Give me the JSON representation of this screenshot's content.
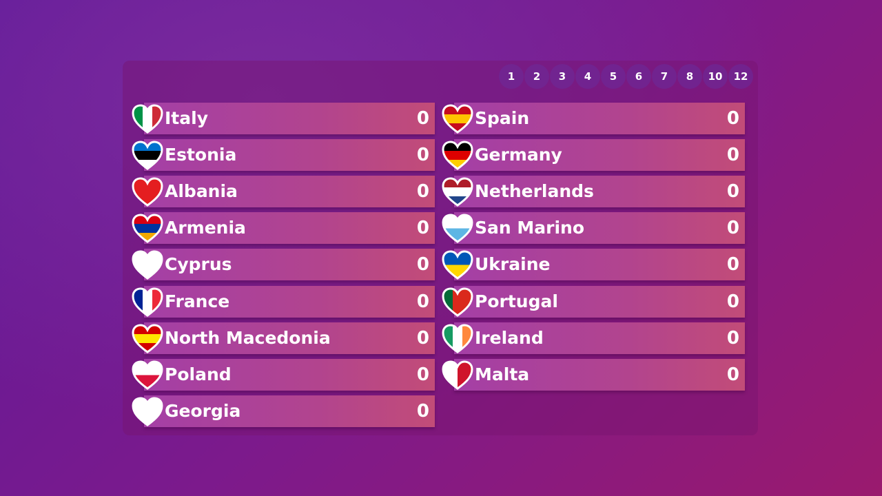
{
  "points": [
    1,
    2,
    3,
    4,
    5,
    6,
    7,
    8,
    10,
    12
  ],
  "columns": [
    [
      {
        "country": "Italy",
        "score": 0
      },
      {
        "country": "Estonia",
        "score": 0
      },
      {
        "country": "Albania",
        "score": 0
      },
      {
        "country": "Armenia",
        "score": 0
      },
      {
        "country": "Cyprus",
        "score": 0
      },
      {
        "country": "France",
        "score": 0
      },
      {
        "country": "North Macedonia",
        "score": 0
      },
      {
        "country": "Poland",
        "score": 0
      },
      {
        "country": "Georgia",
        "score": 0
      }
    ],
    [
      {
        "country": "Spain",
        "score": 0
      },
      {
        "country": "Germany",
        "score": 0
      },
      {
        "country": "Netherlands",
        "score": 0
      },
      {
        "country": "San Marino",
        "score": 0
      },
      {
        "country": "Ukraine",
        "score": 0
      },
      {
        "country": "Portugal",
        "score": 0
      },
      {
        "country": "Ireland",
        "score": 0
      },
      {
        "country": "Malta",
        "score": 0
      }
    ]
  ]
}
